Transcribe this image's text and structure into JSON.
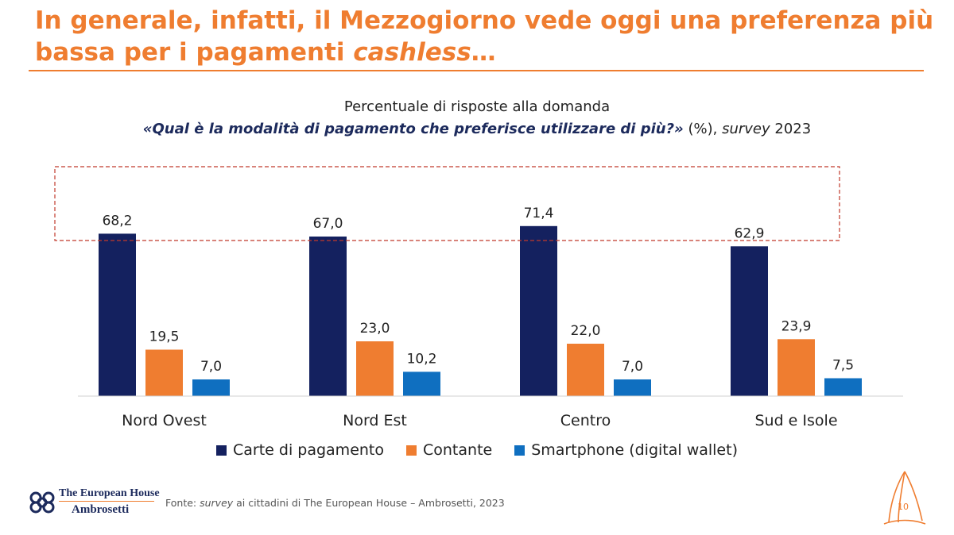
{
  "header": {
    "title_main": "In generale, infatti, il Mezzogiorno vede oggi una preferenza più bassa per i pagamenti ",
    "title_emph": "cashless",
    "title_tail": "…"
  },
  "subtitle": {
    "line1": "Percentuale di risposte alla domanda",
    "question": "«Qual è la modalità di pagamento che preferisce utilizzare di più?»",
    "unit": " (%), ",
    "survey_word": "survey",
    "year": " 2023"
  },
  "chart_data": {
    "type": "bar",
    "categories": [
      "Nord Ovest",
      "Nord Est",
      "Centro",
      "Sud e Isole"
    ],
    "series": [
      {
        "name": "Carte di pagamento",
        "color": "#14215f",
        "values": [
          68.2,
          67.0,
          71.4,
          62.9
        ],
        "labels": [
          "68,2",
          "67,0",
          "71,4",
          "62,9"
        ]
      },
      {
        "name": "Contante",
        "color": "#ef7d30",
        "values": [
          19.5,
          23.0,
          22.0,
          23.9
        ],
        "labels": [
          "19,5",
          "23,0",
          "22,0",
          "23,9"
        ]
      },
      {
        "name": "Smartphone (digital wallet)",
        "color": "#0f6fc0",
        "values": [
          7.0,
          10.2,
          7.0,
          7.5
        ],
        "labels": [
          "7,0",
          "10,2",
          "7,0",
          "7,5"
        ]
      }
    ],
    "ylim": [
      0,
      75
    ],
    "grid": false,
    "legend": "bottom",
    "highlight": "dashed box around the Carte di pagamento values",
    "highlight_color": "#c0392b"
  },
  "footer": {
    "logo_line1": "The European House",
    "logo_line2": "Ambrosetti",
    "source_prefix": "Fonte: ",
    "source_emph": "survey",
    "source_rest": " ai cittadini di The European House – Ambrosetti, 2023",
    "page_number": "10"
  }
}
